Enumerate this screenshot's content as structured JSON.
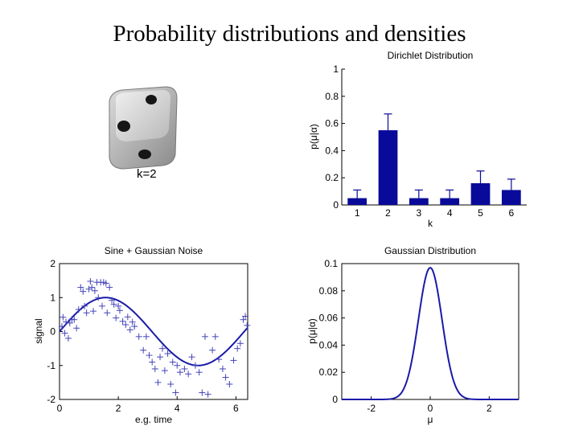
{
  "slide": {
    "title": "Probability distributions and densities"
  },
  "die": {
    "caption": "k=2",
    "icon": "die-icon"
  },
  "chart_data": [
    {
      "type": "bar",
      "title": "Dirichlet Distribution",
      "xlabel": "k",
      "ylabel": "p(μ|α)",
      "categories": [
        "1",
        "2",
        "3",
        "4",
        "5",
        "6"
      ],
      "values": [
        0.05,
        0.55,
        0.05,
        0.05,
        0.16,
        0.11
      ],
      "error_high": [
        0.11,
        0.67,
        0.11,
        0.11,
        0.25,
        0.19
      ],
      "ylim": [
        0,
        1
      ],
      "yticks": [
        0,
        0.2,
        0.4,
        0.6,
        0.8,
        1
      ],
      "ytick_labels": [
        "0",
        "0.2",
        "0.4",
        "0.6",
        "0.8",
        "1"
      ],
      "bar_color": "#0a0a9a",
      "grid": false
    },
    {
      "type": "scatter",
      "title": "Sine + Gaussian Noise",
      "xlabel": "e.g. time",
      "ylabel": "signal",
      "xlim": [
        0,
        6.4
      ],
      "ylim": [
        -2,
        2
      ],
      "xticks": [
        0,
        2,
        4,
        6
      ],
      "yticks": [
        -2,
        -1,
        0,
        1,
        2
      ],
      "line": "sine",
      "line_color": "#1a1aa8",
      "marker": "+",
      "points": [
        [
          0.08,
          0.15
        ],
        [
          0.12,
          0.42
        ],
        [
          0.18,
          -0.05
        ],
        [
          0.22,
          0.28
        ],
        [
          0.3,
          -0.2
        ],
        [
          0.35,
          0.25
        ],
        [
          0.42,
          0.36
        ],
        [
          0.5,
          0.35
        ],
        [
          0.58,
          0.1
        ],
        [
          0.65,
          0.65
        ],
        [
          0.72,
          1.3
        ],
        [
          0.8,
          1.18
        ],
        [
          0.85,
          0.75
        ],
        [
          0.92,
          0.55
        ],
        [
          1.0,
          1.25
        ],
        [
          1.05,
          1.48
        ],
        [
          1.1,
          1.3
        ],
        [
          1.15,
          0.6
        ],
        [
          1.2,
          1.2
        ],
        [
          1.27,
          1.45
        ],
        [
          1.32,
          1.0
        ],
        [
          1.4,
          1.45
        ],
        [
          1.45,
          0.75
        ],
        [
          1.5,
          1.45
        ],
        [
          1.58,
          1.42
        ],
        [
          1.62,
          0.55
        ],
        [
          1.7,
          1.3
        ],
        [
          1.78,
          0.92
        ],
        [
          1.85,
          0.8
        ],
        [
          1.92,
          0.4
        ],
        [
          2.0,
          0.75
        ],
        [
          2.05,
          0.62
        ],
        [
          2.15,
          0.3
        ],
        [
          2.25,
          0.2
        ],
        [
          2.32,
          0.43
        ],
        [
          2.4,
          0.05
        ],
        [
          2.48,
          0.28
        ],
        [
          2.55,
          0.15
        ],
        [
          2.7,
          -0.15
        ],
        [
          2.85,
          -0.55
        ],
        [
          2.95,
          -0.15
        ],
        [
          3.05,
          -0.7
        ],
        [
          3.15,
          -0.9
        ],
        [
          3.25,
          -1.1
        ],
        [
          3.35,
          -1.5
        ],
        [
          3.42,
          -0.75
        ],
        [
          3.5,
          -0.5
        ],
        [
          3.58,
          -1.15
        ],
        [
          3.68,
          -0.65
        ],
        [
          3.78,
          -1.55
        ],
        [
          3.85,
          -0.9
        ],
        [
          3.95,
          -1.8
        ],
        [
          4.0,
          -1.0
        ],
        [
          4.1,
          -1.2
        ],
        [
          4.25,
          -1.1
        ],
        [
          4.38,
          -1.25
        ],
        [
          4.5,
          -0.75
        ],
        [
          4.62,
          -1.0
        ],
        [
          4.75,
          -1.2
        ],
        [
          4.85,
          -1.8
        ],
        [
          4.95,
          -0.15
        ],
        [
          5.05,
          -1.85
        ],
        [
          5.2,
          -0.55
        ],
        [
          5.3,
          -0.15
        ],
        [
          5.42,
          -0.82
        ],
        [
          5.55,
          -1.1
        ],
        [
          5.65,
          -1.35
        ],
        [
          5.78,
          -1.55
        ],
        [
          5.92,
          -0.85
        ],
        [
          6.05,
          -0.5
        ],
        [
          6.15,
          -0.35
        ],
        [
          6.25,
          0.35
        ],
        [
          6.32,
          0.45
        ],
        [
          6.38,
          0.18
        ]
      ]
    },
    {
      "type": "line",
      "title": "Gaussian Distribution",
      "xlabel": "μ",
      "ylabel": "p(μ|α)",
      "xlim": [
        -3,
        3
      ],
      "ylim": [
        0,
        0.1
      ],
      "xticks": [
        -2,
        0,
        2
      ],
      "yticks": [
        0,
        0.02,
        0.04,
        0.06,
        0.08,
        0.1
      ],
      "ytick_labels": [
        "0",
        "0.02",
        "0.04",
        "0.06",
        "0.08",
        "0.1"
      ],
      "curve": "gaussian",
      "mean": 0,
      "sigma": 0.4,
      "peak": 0.097,
      "line_color": "#1a1aa8"
    }
  ]
}
